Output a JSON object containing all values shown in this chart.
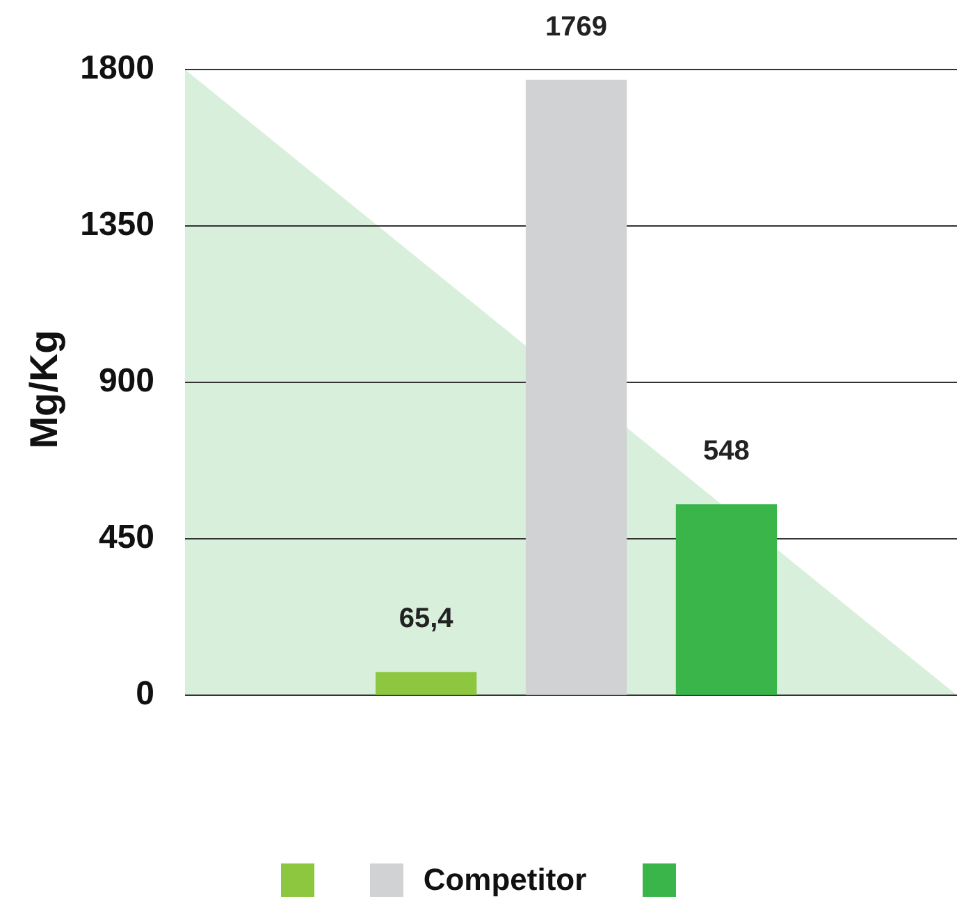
{
  "chart_data": {
    "type": "bar",
    "ylabel": "Mg/Kg",
    "categories": [
      null,
      null,
      null
    ],
    "series": [
      {
        "color": "#8dc63f",
        "values": [
          65.4,
          null,
          null
        ],
        "value_labels": [
          "65,4",
          null,
          null
        ]
      },
      {
        "name": "Competitor",
        "color": "#d1d2d4",
        "values": [
          null,
          1769,
          null
        ],
        "value_labels": [
          null,
          "1769",
          null
        ]
      },
      {
        "color": "#39b54a",
        "values": [
          null,
          null,
          548
        ],
        "value_labels": [
          null,
          null,
          "548"
        ]
      }
    ],
    "ylim": [
      0,
      1800
    ],
    "yticks": [
      0,
      450,
      900,
      1350,
      1800
    ],
    "grid": "y",
    "legend": "bottom"
  }
}
